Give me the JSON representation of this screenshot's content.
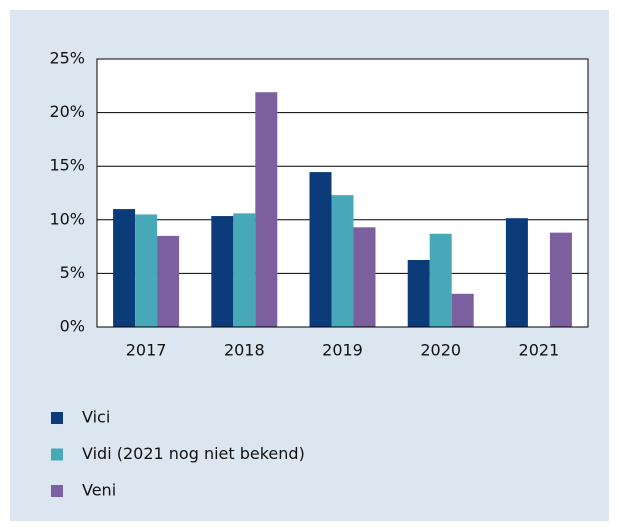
{
  "chart_data": {
    "type": "bar",
    "categories": [
      "2017",
      "2018",
      "2019",
      "2020",
      "2021"
    ],
    "series": [
      {
        "name": "Vici",
        "color": "#0b3b78",
        "values": [
          11.0,
          10.35,
          14.45,
          6.25,
          10.15
        ]
      },
      {
        "name": "Vidi (2021 nog niet bekend)",
        "color": "#47a8b7",
        "values": [
          10.5,
          10.6,
          12.3,
          8.7,
          null
        ]
      },
      {
        "name": "Veni",
        "color": "#7b5f9e",
        "values": [
          8.5,
          21.9,
          9.3,
          3.1,
          8.8
        ]
      }
    ],
    "ylim": [
      0,
      25
    ],
    "yticks": [
      {
        "value": 0,
        "label": "0%"
      },
      {
        "value": 5,
        "label": "5%"
      },
      {
        "value": 10,
        "label": "10%"
      },
      {
        "value": 15,
        "label": "15%"
      },
      {
        "value": 20,
        "label": "20%"
      },
      {
        "value": 25,
        "label": "25%"
      }
    ],
    "grid": true,
    "legend": "bottom-left"
  }
}
